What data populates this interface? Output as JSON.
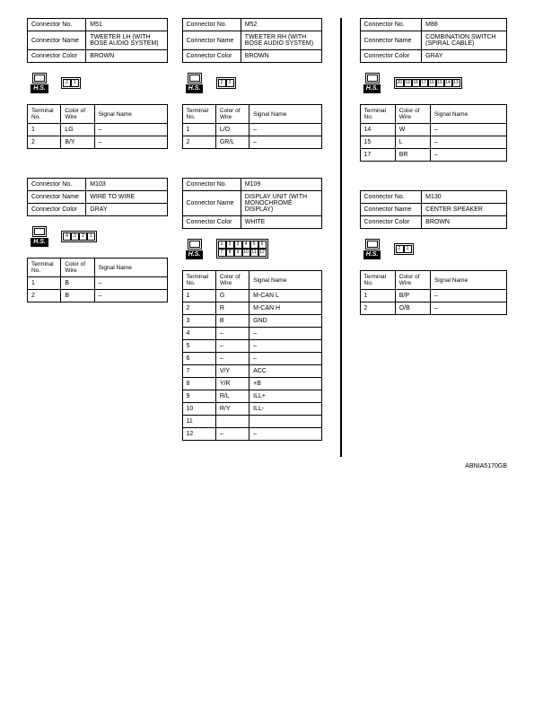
{
  "footer_id": "ABNIA5170GB",
  "labels": {
    "connector_no": "Connector No.",
    "connector_name": "Connector Name",
    "connector_color": "Connector Color",
    "terminal_no": "Terminal No.",
    "color_of_wire": "Color of Wire",
    "signal_name": "Signal Name",
    "hs": "H.S."
  },
  "blocks": {
    "m51": {
      "no": "M51",
      "name": "TWEETER LH (WITH BOSE AUDIO SYSTEM)",
      "color": "BROWN",
      "pins": [
        [
          "2",
          "1"
        ]
      ],
      "rows": [
        {
          "t": "1",
          "c": "LG",
          "s": "–"
        },
        {
          "t": "2",
          "c": "B/Y",
          "s": "–"
        }
      ]
    },
    "m52": {
      "no": "M52",
      "name": "TWEETER RH (WITH BOSE AUDIO SYSTEM)",
      "color": "BROWN",
      "pins": [
        [
          "2",
          "1"
        ]
      ],
      "rows": [
        {
          "t": "1",
          "c": "L/O",
          "s": "–"
        },
        {
          "t": "2",
          "c": "GR/L",
          "s": "–"
        }
      ]
    },
    "m88": {
      "no": "M88",
      "name": "COMBINATION SWITCH (SPIRAL CABLE)",
      "color": "GRAY",
      "pins": [
        [
          "20",
          "19",
          "18",
          "17",
          "16",
          "15",
          "14",
          "13"
        ]
      ],
      "rows": [
        {
          "t": "14",
          "c": "W",
          "s": "–"
        },
        {
          "t": "15",
          "c": "L",
          "s": "–"
        },
        {
          "t": "17",
          "c": "BR",
          "s": "–"
        }
      ]
    },
    "m103": {
      "no": "M103",
      "name": "WIRE TO WIRE",
      "color": "GRAY",
      "pins": [
        [
          "4",
          "3",
          "2",
          "1"
        ]
      ],
      "rows": [
        {
          "t": "1",
          "c": "B",
          "s": "–"
        },
        {
          "t": "2",
          "c": "B",
          "s": "–"
        }
      ]
    },
    "m109": {
      "no": "M109",
      "name": "DISPLAY UNIT (WITH MONOCHROME DISPLAY)",
      "color": "WHITE",
      "pins": [
        [
          "1",
          "2",
          "3",
          "4",
          "5",
          "6"
        ],
        [
          "7",
          "8",
          "9",
          "10",
          "11",
          "12"
        ]
      ],
      "rows": [
        {
          "t": "1",
          "c": "G",
          "s": "M-CAN L"
        },
        {
          "t": "2",
          "c": "R",
          "s": "M-CAN H"
        },
        {
          "t": "3",
          "c": "B",
          "s": "GND"
        },
        {
          "t": "4",
          "c": "–",
          "s": "–"
        },
        {
          "t": "5",
          "c": "–",
          "s": "–"
        },
        {
          "t": "6",
          "c": "–",
          "s": "–"
        },
        {
          "t": "7",
          "c": "V/Y",
          "s": "ACC"
        },
        {
          "t": "8",
          "c": "Y/R",
          "s": "+B"
        },
        {
          "t": "9",
          "c": "R/L",
          "s": "ILL+"
        },
        {
          "t": "10",
          "c": "R/Y",
          "s": "ILL-"
        },
        {
          "t": "11",
          "c": "",
          "s": ""
        },
        {
          "t": "12",
          "c": "–",
          "s": "–"
        }
      ]
    },
    "m130": {
      "no": "M130",
      "name": "CENTER SPEAKER",
      "color": "BROWN",
      "pins": [
        [
          "2",
          "1"
        ]
      ],
      "rows": [
        {
          "t": "1",
          "c": "B/P",
          "s": "–"
        },
        {
          "t": "2",
          "c": "O/B",
          "s": "–"
        }
      ]
    }
  }
}
